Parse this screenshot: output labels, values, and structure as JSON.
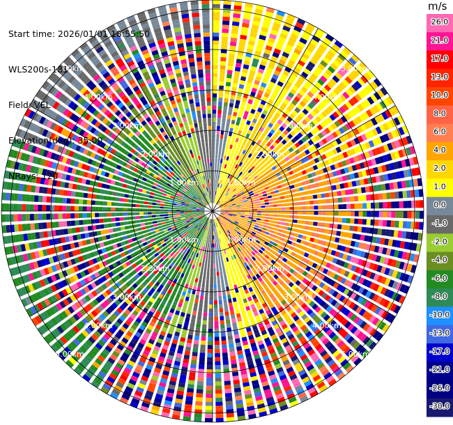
{
  "info": {
    "start_time": "Start time: 2026/01/01 18:55:50",
    "instrument": "WLS200s-181",
    "field": "Field: VEL",
    "elevation": "Elevation(deg): 35.00",
    "nrays": "NRays: 120"
  },
  "colorbar": {
    "unit": "m/s",
    "ticks": [
      "26.0",
      "21.0",
      "17.0",
      "13.0",
      "10.0",
      "8.0",
      "6.0",
      "4.0",
      "2.0",
      "1.0",
      "0.0",
      "-1.0",
      "-2.0",
      "-4.0",
      "-6.0",
      "-8.0",
      "-10.0",
      "-13.0",
      "-17.0",
      "-21.0",
      "-26.0",
      "-30.0"
    ],
    "bins": [
      {
        "range": "26 to 30",
        "color": "#ff69b4"
      },
      {
        "range": "21 to 26",
        "color": "#ff1493"
      },
      {
        "range": "17 to 21",
        "color": "#ff0000"
      },
      {
        "range": "13 to 17",
        "color": "#ff2400"
      },
      {
        "range": "10 to 13",
        "color": "#ff4500"
      },
      {
        "range": "8 to 10",
        "color": "#ff6347"
      },
      {
        "range": "6 to 8",
        "color": "#ff7f50"
      },
      {
        "range": "4 to 6",
        "color": "#ffa500"
      },
      {
        "range": "2 to 4",
        "color": "#ffd700"
      },
      {
        "range": "1 to 2",
        "color": "#ffff00"
      },
      {
        "range": "0 to 1",
        "color": "#778899"
      },
      {
        "range": "-1 to 0",
        "color": "#696969"
      },
      {
        "range": "-2 to -1",
        "color": "#9acd32"
      },
      {
        "range": "-4 to -2",
        "color": "#6b8e23"
      },
      {
        "range": "-6 to -4",
        "color": "#228b22"
      },
      {
        "range": "-8 to -6",
        "color": "#2e8b57"
      },
      {
        "range": "-10 to -8",
        "color": "#1e90ff"
      },
      {
        "range": "-13 to -10",
        "color": "#4169e1"
      },
      {
        "range": "-17 to -13",
        "color": "#0000cd"
      },
      {
        "range": "-21 to -17",
        "color": "#00008b"
      },
      {
        "range": "-26 to -21",
        "color": "#000080"
      },
      {
        "range": "-30 to -26",
        "color": "#191970"
      }
    ]
  },
  "chart_data": {
    "type": "ppi",
    "field": "VEL",
    "units": "m/s",
    "elevation_deg": 35.0,
    "nrays": 120,
    "value_range": [
      -30,
      30
    ],
    "range_rings_km": [
      1.0,
      2.0,
      3.0,
      4.0,
      5.0
    ],
    "range_ring_labels": [
      "1.00km",
      "2.00km",
      "3.00km",
      "4.00km",
      "5.00km"
    ],
    "grid": true,
    "pattern_description_values": {
      "north_east_sector_mean_m_s": 1.5,
      "east_near_sector_mean_m_s": 4.5,
      "west_near_sector_mean_m_s": -5.0,
      "outer_ring_mostly_noise": true
    }
  }
}
